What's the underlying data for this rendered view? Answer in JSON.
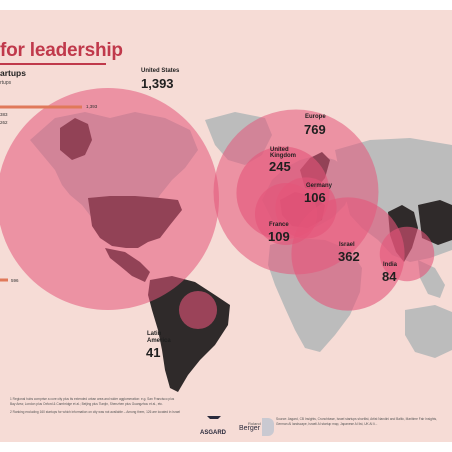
{
  "header": {
    "title": "for leadership",
    "subtitle": "artups",
    "subtitle2": "rtups"
  },
  "colors": {
    "background": "#f6dcd6",
    "land": "#bcbcbc",
    "dark_land": "#2f2a2a",
    "bubble": "#e4557a",
    "accent_bar": "#e0795a",
    "title": "#c0394b"
  },
  "bars": {
    "values": [
      "1,393",
      "383",
      "262",
      "596"
    ]
  },
  "chart_data": {
    "type": "bubble-map",
    "series": [
      {
        "region": "United States",
        "value": 1393
      },
      {
        "region": "Europe",
        "value": 769
      },
      {
        "region": "United Kingdom",
        "value": 245
      },
      {
        "region": "Germany",
        "value": 106
      },
      {
        "region": "France",
        "value": 109
      },
      {
        "region": "Israel",
        "value": 362
      },
      {
        "region": "India",
        "value": 84
      },
      {
        "region": "Latin America",
        "value": 41
      }
    ]
  },
  "labels": {
    "us_name": "United States",
    "us_value": "1,393",
    "europe_name": "Europe",
    "europe_value": "769",
    "uk_name_1": "United",
    "uk_name_2": "Kingdom",
    "uk_value": "245",
    "germany_name": "Germany",
    "germany_value": "106",
    "france_name": "France",
    "france_value": "109",
    "israel_name": "Israel",
    "israel_value": "362",
    "india_name": "India",
    "india_value": "84",
    "latam_name_1": "Latin",
    "latam_name_2": "America",
    "latam_value": "41"
  },
  "footnotes": {
    "note1": "1  Regional hubs comprise a core city plus its extended urban area and wider agglomeration: e.g. San Francisco plus",
    "note1b": "   Bay Area; London plus Oxford & Cambridge et al.; Beijing plus Tianjin, Shenzhen plus Guangzhou et al., etc.",
    "note2": "2  Ranking excluding 160 startups for which information on city was not available – Among them, 126 are located in Israel",
    "source1": "Source: Asgard, CB Insights, Crunchbase, Israel startups shortlist, Artist Nandini and Baltic, Maritime Fair Insights,",
    "source2": "German AI landscape, Israeli AI startup map, Japanese AI list, UK AI li..."
  },
  "logos": {
    "asgard": "ASGARD",
    "berger_small": "Roland",
    "berger": "Berger"
  }
}
